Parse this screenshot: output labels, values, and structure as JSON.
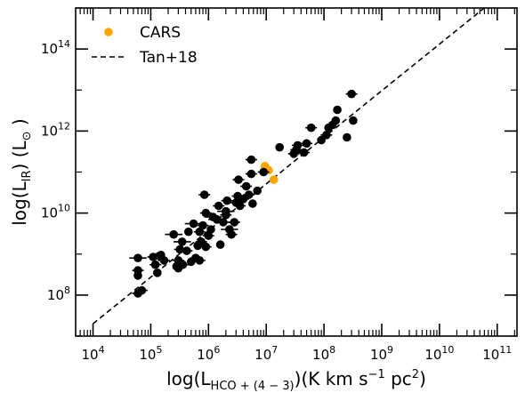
{
  "chart_data": {
    "type": "scatter",
    "x_scale": "log",
    "y_scale": "log",
    "xlim": [
      5000.0,
      220000000000.0
    ],
    "ylim": [
      10000000.0,
      1000000000000000.0
    ],
    "x_ticks": [
      {
        "value": 10000.0,
        "base": "10",
        "exp": "4"
      },
      {
        "value": 100000.0,
        "base": "10",
        "exp": "5"
      },
      {
        "value": 1000000.0,
        "base": "10",
        "exp": "6"
      },
      {
        "value": 10000000.0,
        "base": "10",
        "exp": "7"
      },
      {
        "value": 100000000.0,
        "base": "10",
        "exp": "8"
      },
      {
        "value": 1000000000.0,
        "base": "10",
        "exp": "9"
      },
      {
        "value": 10000000000.0,
        "base": "10",
        "exp": "10"
      },
      {
        "value": 100000000000.0,
        "base": "10",
        "exp": "11"
      }
    ],
    "y_ticks": [
      {
        "value": 100000000.0,
        "base": "10",
        "exp": "8"
      },
      {
        "value": 10000000000.0,
        "base": "10",
        "exp": "10"
      },
      {
        "value": 1000000000000.0,
        "base": "10",
        "exp": "12"
      },
      {
        "value": 100000000000000.0,
        "base": "10",
        "exp": "14"
      }
    ],
    "xlabel": {
      "pre": "log(L",
      "sub": "HCO + (4 − 3)",
      "post": ")(K km s",
      "sup": "−1",
      "post2": " pc",
      "sup2": "2",
      "post3": ")"
    },
    "ylabel": {
      "pre": "log(L",
      "sub": "IR",
      "post": ") (L",
      "sub2": "⊙",
      "post2": " )"
    },
    "legend_position": "top-left",
    "grid": false,
    "series": [
      {
        "name": "CARS",
        "color": "#ffa500",
        "marker": "circle",
        "points": [
          [
            9500000.0,
            140000000000.0
          ],
          [
            11000000.0,
            110000000000.0
          ],
          [
            13500000.0,
            65000000000.0
          ]
        ]
      },
      {
        "name": "Tan+18",
        "color": "#000000",
        "marker": "circle",
        "points": [
          [
            60000.0,
            800000000.0
          ],
          [
            60000.0,
            400000000.0
          ],
          [
            60000.0,
            300000000.0
          ],
          [
            60000.0,
            110000000.0
          ],
          [
            70000.0,
            130000000.0
          ],
          [
            110000.0,
            850000000.0
          ],
          [
            120000.0,
            550000000.0
          ],
          [
            130000.0,
            350000000.0
          ],
          [
            140000.0,
            900000000.0
          ],
          [
            150000.0,
            950000000.0
          ],
          [
            170000.0,
            700000000.0
          ],
          [
            250000.0,
            3000000000.0
          ],
          [
            280000.0,
            500000000.0
          ],
          [
            300000.0,
            700000000.0
          ],
          [
            320000.0,
            1300000000.0
          ],
          [
            350000.0,
            2000000000.0
          ],
          [
            300000.0,
            450000000.0
          ],
          [
            360000.0,
            550000000.0
          ],
          [
            420000.0,
            1200000000.0
          ],
          [
            450000.0,
            3500000000.0
          ],
          [
            500000.0,
            650000000.0
          ],
          [
            550000.0,
            5500000000.0
          ],
          [
            600000.0,
            800000000.0
          ],
          [
            650000.0,
            1600000000.0
          ],
          [
            700000.0,
            3500000000.0
          ],
          [
            700000.0,
            700000000.0
          ],
          [
            750000.0,
            2000000000.0
          ],
          [
            800000.0,
            5000000000.0
          ],
          [
            850000.0,
            28000000000.0
          ],
          [
            900000.0,
            1500000000.0
          ],
          [
            900000.0,
            10000000000.0
          ],
          [
            1000000.0,
            2800000000.0
          ],
          [
            1100000.0,
            4000000000.0
          ],
          [
            1200000.0,
            8000000000.0
          ],
          [
            1400000.0,
            7000000000.0
          ],
          [
            1500000.0,
            15000000000.0
          ],
          [
            1600000.0,
            1700000000.0
          ],
          [
            1800000.0,
            6000000000.0
          ],
          [
            2000000.0,
            9000000000.0
          ],
          [
            2000000.0,
            11000000000.0
          ],
          [
            2100000.0,
            20000000000.0
          ],
          [
            2300000.0,
            4000000000.0
          ],
          [
            2500000.0,
            3000000000.0
          ],
          [
            2800000.0,
            6000000000.0
          ],
          [
            3000000.0,
            18000000000.0
          ],
          [
            3200000.0,
            26000000000.0
          ],
          [
            3300000.0,
            65000000000.0
          ],
          [
            3500000.0,
            15000000000.0
          ],
          [
            4000000.0,
            22000000000.0
          ],
          [
            4500000.0,
            45000000000.0
          ],
          [
            5000000.0,
            28000000000.0
          ],
          [
            5500000.0,
            90000000000.0
          ],
          [
            5500000.0,
            200000000000.0
          ],
          [
            5800000.0,
            17000000000.0
          ],
          [
            7000000.0,
            35000000000.0
          ],
          [
            9000000.0,
            100000000000.0
          ],
          [
            17000000.0,
            400000000000.0
          ],
          [
            30000000.0,
            280000000000.0
          ],
          [
            33000000.0,
            350000000000.0
          ],
          [
            35000000.0,
            450000000000.0
          ],
          [
            45000000.0,
            300000000000.0
          ],
          [
            50000000.0,
            500000000000.0
          ],
          [
            60000000.0,
            1200000000000.0
          ],
          [
            90000000.0,
            600000000000.0
          ],
          [
            110000000.0,
            800000000000.0
          ],
          [
            120000000.0,
            1200000000000.0
          ],
          [
            140000000.0,
            1400000000000.0
          ],
          [
            160000000.0,
            1800000000000.0
          ],
          [
            170000000.0,
            3300000000000.0
          ],
          [
            250000000.0,
            700000000000.0
          ],
          [
            300000000.0,
            8000000000000.0
          ],
          [
            320000000.0,
            1800000000000.0
          ]
        ],
        "xerr_dex": [
          0.15,
          0.1,
          0,
          0.1,
          0.1,
          0.1,
          0.1,
          0,
          0.1,
          0,
          0.1,
          0.15,
          0,
          0.1,
          0.1,
          0.15,
          0.1,
          0.1,
          0.1,
          0,
          0,
          0.15,
          0.1,
          0,
          0.1,
          0.1,
          0.1,
          0.1,
          0.1,
          0.1,
          0.1,
          0.1,
          0,
          0.15,
          0.15,
          0.1,
          0,
          0.15,
          0.1,
          0.15,
          0.1,
          0.15,
          0.1,
          0.1,
          0.1,
          0.1,
          0.1,
          0.1,
          0.1,
          0.1,
          0.1,
          0.1,
          0.1,
          0,
          0,
          0.1,
          0,
          0.1,
          0.1,
          0.1,
          0.1,
          0.1,
          0.1,
          0,
          0.1,
          0,
          0,
          0,
          0,
          0,
          0.1,
          0
        ]
      },
      {
        "name": "",
        "type": "line",
        "style": "dashed",
        "color": "#000000",
        "points": [
          [
            10000.0,
            20000000.0
          ],
          [
            100000000000.0,
            1800000000000000.0
          ]
        ]
      }
    ],
    "legend": [
      {
        "label": "CARS",
        "symbol": "circle",
        "color": "#ffa500"
      },
      {
        "label": "Tan+18",
        "symbol": "dashed-line",
        "color": "#000000"
      }
    ]
  }
}
